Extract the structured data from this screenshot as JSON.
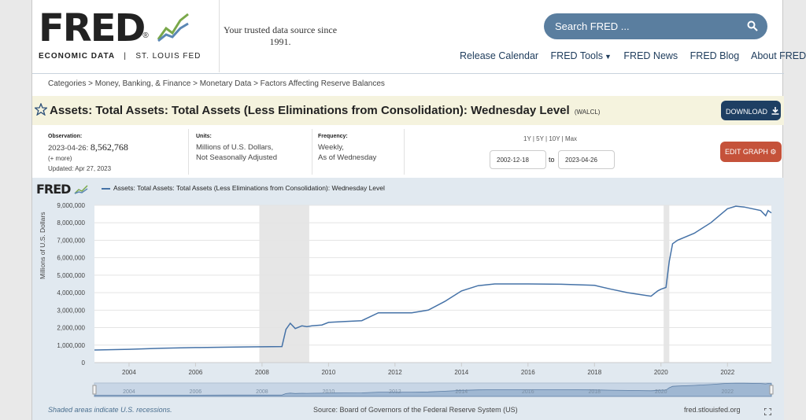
{
  "header": {
    "logo_word": "FRED",
    "logo_reg": "®",
    "logo_sub_bold": "ECONOMIC DATA",
    "logo_sub_sep": "|",
    "logo_sub_rest": "ST. LOUIS FED",
    "tagline": "Your trusted data source since 1991.",
    "search_placeholder": "Search FRED ...",
    "nav": [
      "Release Calendar",
      "FRED Tools",
      "FRED News",
      "FRED Blog",
      "About FRED"
    ]
  },
  "breadcrumb": "Categories > Money, Banking, & Finance > Monetary Data > Factors Affecting Reserve Balances",
  "series": {
    "title": "Assets: Total Assets: Total Assets (Less Eliminations from Consolidation): Wednesday Level",
    "code": "(WALCL)",
    "download_label": "DOWNLOAD",
    "edit_label": "EDIT GRAPH"
  },
  "meta": {
    "observation_label": "Observation:",
    "observation_date": "2023-04-26:",
    "observation_value": "8,562,768",
    "more": "(+ more)",
    "updated": "Updated: Apr 27, 2023",
    "units_label": "Units:",
    "units_1": "Millions of U.S. Dollars,",
    "units_2": "Not Seasonally Adjusted",
    "frequency_label": "Frequency:",
    "frequency_1": "Weekly,",
    "frequency_2": "As of Wednesday",
    "ranges": "1Y | 5Y | 10Y | Max",
    "date_from": "2002-12-18",
    "date_to_word": "to",
    "date_to": "2023-04-26"
  },
  "chart_footer": {
    "recession_note": "Shaded areas indicate U.S. recessions.",
    "source": "Source: Board of Governors of the Federal Reserve System (US)",
    "url": "fred.stlouisfed.org"
  },
  "colors": {
    "line": "#4572a7",
    "download": "#1e3f63",
    "edit": "#c5523a",
    "title_bg": "#f5f3de",
    "search_bg": "#5a7e9f"
  },
  "chart_data": {
    "type": "line",
    "title": "",
    "legend": "Assets: Total Assets: Total Assets (Less Eliminations from Consolidation): Wednesday Level",
    "ylabel": "Millions of U.S. Dollars",
    "xlim": [
      2002.96,
      2023.32
    ],
    "ylim": [
      0,
      9000000
    ],
    "yticks": [
      0,
      1000000,
      2000000,
      3000000,
      4000000,
      5000000,
      6000000,
      7000000,
      8000000,
      9000000
    ],
    "ytick_labels": [
      "0",
      "1,000,000",
      "2,000,000",
      "3,000,000",
      "4,000,000",
      "5,000,000",
      "6,000,000",
      "7,000,000",
      "8,000,000",
      "9,000,000"
    ],
    "xticks": [
      2004,
      2006,
      2008,
      2010,
      2012,
      2014,
      2016,
      2018,
      2020,
      2022
    ],
    "xtick_labels": [
      "2004",
      "2006",
      "2008",
      "2010",
      "2012",
      "2014",
      "2016",
      "2018",
      "2020",
      "2022"
    ],
    "recessions": [
      [
        2007.92,
        2009.42
      ],
      [
        2020.08,
        2020.25
      ]
    ],
    "grid": true,
    "x": [
      2002.96,
      2004.0,
      2005.0,
      2006.0,
      2007.0,
      2007.7,
      2008.6,
      2008.72,
      2008.85,
      2009.0,
      2009.2,
      2009.35,
      2009.5,
      2009.8,
      2010.0,
      2010.5,
      2011.0,
      2011.5,
      2012.0,
      2012.5,
      2013.0,
      2013.5,
      2014.0,
      2014.5,
      2015.0,
      2016.0,
      2017.0,
      2018.0,
      2018.5,
      2019.0,
      2019.7,
      2019.9,
      2020.0,
      2020.15,
      2020.25,
      2020.35,
      2020.5,
      2021.0,
      2021.5,
      2022.0,
      2022.25,
      2022.5,
      2023.0,
      2023.15,
      2023.22,
      2023.32
    ],
    "y": [
      720000,
      760000,
      820000,
      860000,
      880000,
      900000,
      920000,
      1900000,
      2250000,
      1950000,
      2100000,
      2050000,
      2100000,
      2150000,
      2300000,
      2350000,
      2400000,
      2850000,
      2850000,
      2850000,
      3000000,
      3500000,
      4100000,
      4400000,
      4500000,
      4500000,
      4480000,
      4420000,
      4200000,
      4000000,
      3800000,
      4100000,
      4200000,
      4300000,
      5800000,
      6800000,
      7000000,
      7400000,
      8000000,
      8800000,
      8950000,
      8900000,
      8700000,
      8400000,
      8700000,
      8562768
    ]
  }
}
